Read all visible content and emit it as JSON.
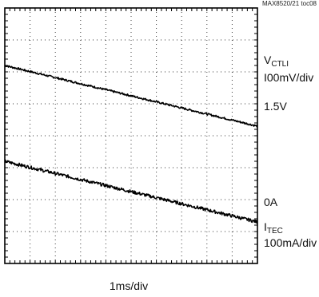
{
  "doc_code": "MAX8520/21 toc08",
  "chart_data": {
    "type": "line",
    "xlabel": "1ms/div",
    "grid": true,
    "x_divisions": 10,
    "y_divisions": 8,
    "series": [
      {
        "name": "V_CTLI",
        "label_main": "V",
        "label_sub": "CTLI",
        "scale": "I00mV/div",
        "ref_label": "1.5V",
        "ref_level_div": 5.3,
        "x": [
          0,
          10
        ],
        "y": [
          6.2,
          4.3
        ],
        "noise_div": 0.03
      },
      {
        "name": "I_TEC",
        "label_main": "I",
        "label_sub": "TEC",
        "scale": "100mA/div",
        "ref_label": "0A",
        "ref_level_div": 2.3,
        "x": [
          0,
          10
        ],
        "y": [
          3.2,
          1.3
        ],
        "noise_div": 0.05
      }
    ]
  }
}
